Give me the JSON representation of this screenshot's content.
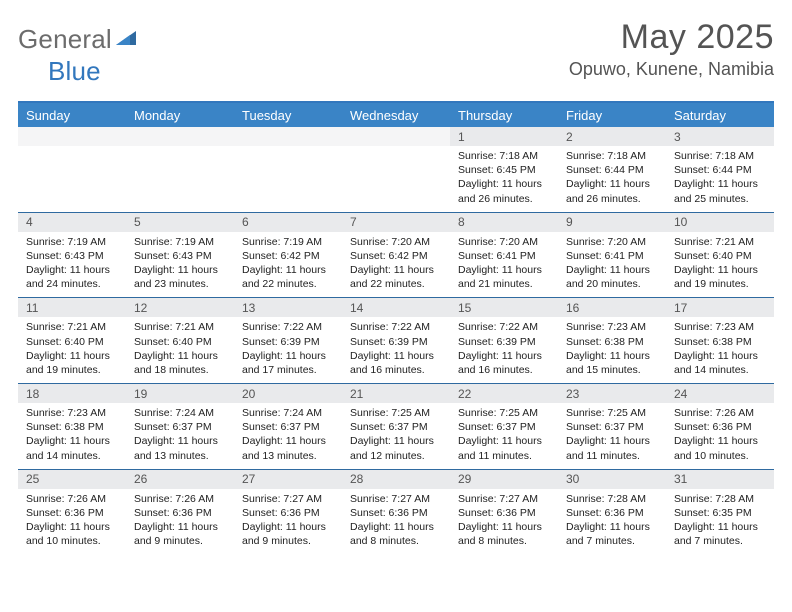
{
  "brand": {
    "general": "General",
    "blue": "Blue"
  },
  "title": "May 2025",
  "location": "Opuwo, Kunene, Namibia",
  "colors": {
    "header_bg": "#3a84c6",
    "header_border_top": "#3277bd",
    "row_divider": "#2f6aa0",
    "daynum_bg": "#e9eaec",
    "daynum_empty_bg": "#f5f5f6",
    "text": "#222222",
    "muted": "#545454",
    "logo_gray": "#6c6c6c",
    "logo_blue": "#3277bd",
    "page_bg": "#ffffff"
  },
  "fonts": {
    "family": "Arial",
    "title_size_pt": 26,
    "location_size_pt": 14,
    "day_header_size_pt": 10,
    "daynum_size_pt": 9,
    "body_size_pt": 8
  },
  "day_headers": [
    "Sunday",
    "Monday",
    "Tuesday",
    "Wednesday",
    "Thursday",
    "Friday",
    "Saturday"
  ],
  "weeks": [
    [
      null,
      null,
      null,
      null,
      {
        "n": "1",
        "sr": "Sunrise: 7:18 AM",
        "ss": "Sunset: 6:45 PM",
        "dl": "Daylight: 11 hours and 26 minutes."
      },
      {
        "n": "2",
        "sr": "Sunrise: 7:18 AM",
        "ss": "Sunset: 6:44 PM",
        "dl": "Daylight: 11 hours and 26 minutes."
      },
      {
        "n": "3",
        "sr": "Sunrise: 7:18 AM",
        "ss": "Sunset: 6:44 PM",
        "dl": "Daylight: 11 hours and 25 minutes."
      }
    ],
    [
      {
        "n": "4",
        "sr": "Sunrise: 7:19 AM",
        "ss": "Sunset: 6:43 PM",
        "dl": "Daylight: 11 hours and 24 minutes."
      },
      {
        "n": "5",
        "sr": "Sunrise: 7:19 AM",
        "ss": "Sunset: 6:43 PM",
        "dl": "Daylight: 11 hours and 23 minutes."
      },
      {
        "n": "6",
        "sr": "Sunrise: 7:19 AM",
        "ss": "Sunset: 6:42 PM",
        "dl": "Daylight: 11 hours and 22 minutes."
      },
      {
        "n": "7",
        "sr": "Sunrise: 7:20 AM",
        "ss": "Sunset: 6:42 PM",
        "dl": "Daylight: 11 hours and 22 minutes."
      },
      {
        "n": "8",
        "sr": "Sunrise: 7:20 AM",
        "ss": "Sunset: 6:41 PM",
        "dl": "Daylight: 11 hours and 21 minutes."
      },
      {
        "n": "9",
        "sr": "Sunrise: 7:20 AM",
        "ss": "Sunset: 6:41 PM",
        "dl": "Daylight: 11 hours and 20 minutes."
      },
      {
        "n": "10",
        "sr": "Sunrise: 7:21 AM",
        "ss": "Sunset: 6:40 PM",
        "dl": "Daylight: 11 hours and 19 minutes."
      }
    ],
    [
      {
        "n": "11",
        "sr": "Sunrise: 7:21 AM",
        "ss": "Sunset: 6:40 PM",
        "dl": "Daylight: 11 hours and 19 minutes."
      },
      {
        "n": "12",
        "sr": "Sunrise: 7:21 AM",
        "ss": "Sunset: 6:40 PM",
        "dl": "Daylight: 11 hours and 18 minutes."
      },
      {
        "n": "13",
        "sr": "Sunrise: 7:22 AM",
        "ss": "Sunset: 6:39 PM",
        "dl": "Daylight: 11 hours and 17 minutes."
      },
      {
        "n": "14",
        "sr": "Sunrise: 7:22 AM",
        "ss": "Sunset: 6:39 PM",
        "dl": "Daylight: 11 hours and 16 minutes."
      },
      {
        "n": "15",
        "sr": "Sunrise: 7:22 AM",
        "ss": "Sunset: 6:39 PM",
        "dl": "Daylight: 11 hours and 16 minutes."
      },
      {
        "n": "16",
        "sr": "Sunrise: 7:23 AM",
        "ss": "Sunset: 6:38 PM",
        "dl": "Daylight: 11 hours and 15 minutes."
      },
      {
        "n": "17",
        "sr": "Sunrise: 7:23 AM",
        "ss": "Sunset: 6:38 PM",
        "dl": "Daylight: 11 hours and 14 minutes."
      }
    ],
    [
      {
        "n": "18",
        "sr": "Sunrise: 7:23 AM",
        "ss": "Sunset: 6:38 PM",
        "dl": "Daylight: 11 hours and 14 minutes."
      },
      {
        "n": "19",
        "sr": "Sunrise: 7:24 AM",
        "ss": "Sunset: 6:37 PM",
        "dl": "Daylight: 11 hours and 13 minutes."
      },
      {
        "n": "20",
        "sr": "Sunrise: 7:24 AM",
        "ss": "Sunset: 6:37 PM",
        "dl": "Daylight: 11 hours and 13 minutes."
      },
      {
        "n": "21",
        "sr": "Sunrise: 7:25 AM",
        "ss": "Sunset: 6:37 PM",
        "dl": "Daylight: 11 hours and 12 minutes."
      },
      {
        "n": "22",
        "sr": "Sunrise: 7:25 AM",
        "ss": "Sunset: 6:37 PM",
        "dl": "Daylight: 11 hours and 11 minutes."
      },
      {
        "n": "23",
        "sr": "Sunrise: 7:25 AM",
        "ss": "Sunset: 6:37 PM",
        "dl": "Daylight: 11 hours and 11 minutes."
      },
      {
        "n": "24",
        "sr": "Sunrise: 7:26 AM",
        "ss": "Sunset: 6:36 PM",
        "dl": "Daylight: 11 hours and 10 minutes."
      }
    ],
    [
      {
        "n": "25",
        "sr": "Sunrise: 7:26 AM",
        "ss": "Sunset: 6:36 PM",
        "dl": "Daylight: 11 hours and 10 minutes."
      },
      {
        "n": "26",
        "sr": "Sunrise: 7:26 AM",
        "ss": "Sunset: 6:36 PM",
        "dl": "Daylight: 11 hours and 9 minutes."
      },
      {
        "n": "27",
        "sr": "Sunrise: 7:27 AM",
        "ss": "Sunset: 6:36 PM",
        "dl": "Daylight: 11 hours and 9 minutes."
      },
      {
        "n": "28",
        "sr": "Sunrise: 7:27 AM",
        "ss": "Sunset: 6:36 PM",
        "dl": "Daylight: 11 hours and 8 minutes."
      },
      {
        "n": "29",
        "sr": "Sunrise: 7:27 AM",
        "ss": "Sunset: 6:36 PM",
        "dl": "Daylight: 11 hours and 8 minutes."
      },
      {
        "n": "30",
        "sr": "Sunrise: 7:28 AM",
        "ss": "Sunset: 6:36 PM",
        "dl": "Daylight: 11 hours and 7 minutes."
      },
      {
        "n": "31",
        "sr": "Sunrise: 7:28 AM",
        "ss": "Sunset: 6:35 PM",
        "dl": "Daylight: 11 hours and 7 minutes."
      }
    ]
  ]
}
